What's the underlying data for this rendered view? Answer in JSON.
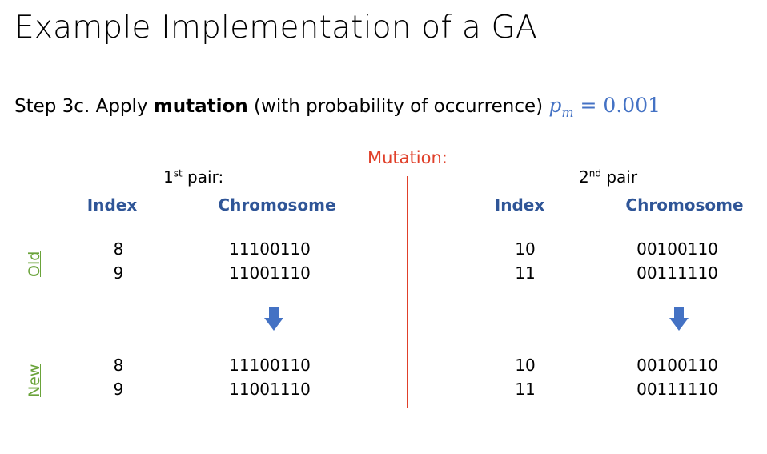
{
  "slide": {
    "title": "Example Implementation of a GA",
    "step": {
      "prefix": "Step 3c. Apply ",
      "bold": "mutation",
      "suffix": " (with probability of occurrence) ",
      "formula_var": "p",
      "formula_sub": "m",
      "formula_rest": " = 0.001"
    },
    "mutation_label": "Mutation:",
    "pairs": [
      {
        "label_num": "1",
        "label_sup": "st",
        "label_rest": " pair:",
        "index_header": "Index",
        "chromosome_header": "Chromosome",
        "old": [
          {
            "index": "8",
            "chromosome": "11100110"
          },
          {
            "index": "9",
            "chromosome": "11001110"
          }
        ],
        "new": [
          {
            "index": "8",
            "chromosome": "11100110"
          },
          {
            "index": "9",
            "chromosome": "11001110"
          }
        ]
      },
      {
        "label_num": "2",
        "label_sup": "nd",
        "label_rest": " pair",
        "index_header": "Index",
        "chromosome_header": "Chromosome",
        "old": [
          {
            "index": "10",
            "chromosome": "00100110"
          },
          {
            "index": "11",
            "chromosome": "00111110"
          }
        ],
        "new": [
          {
            "index": "10",
            "chromosome": "00100110"
          },
          {
            "index": "11",
            "chromosome": "00111110"
          }
        ]
      }
    ],
    "row_labels": {
      "old": "Old",
      "new": "New"
    },
    "icons": {
      "arrow": "down-arrow-icon"
    },
    "colors": {
      "header_blue": "#2f5597",
      "formula_blue": "#4472c4",
      "arrow_blue": "#4472c4",
      "mutation_red": "#e0402a",
      "row_label_green": "#6aa33a"
    }
  }
}
